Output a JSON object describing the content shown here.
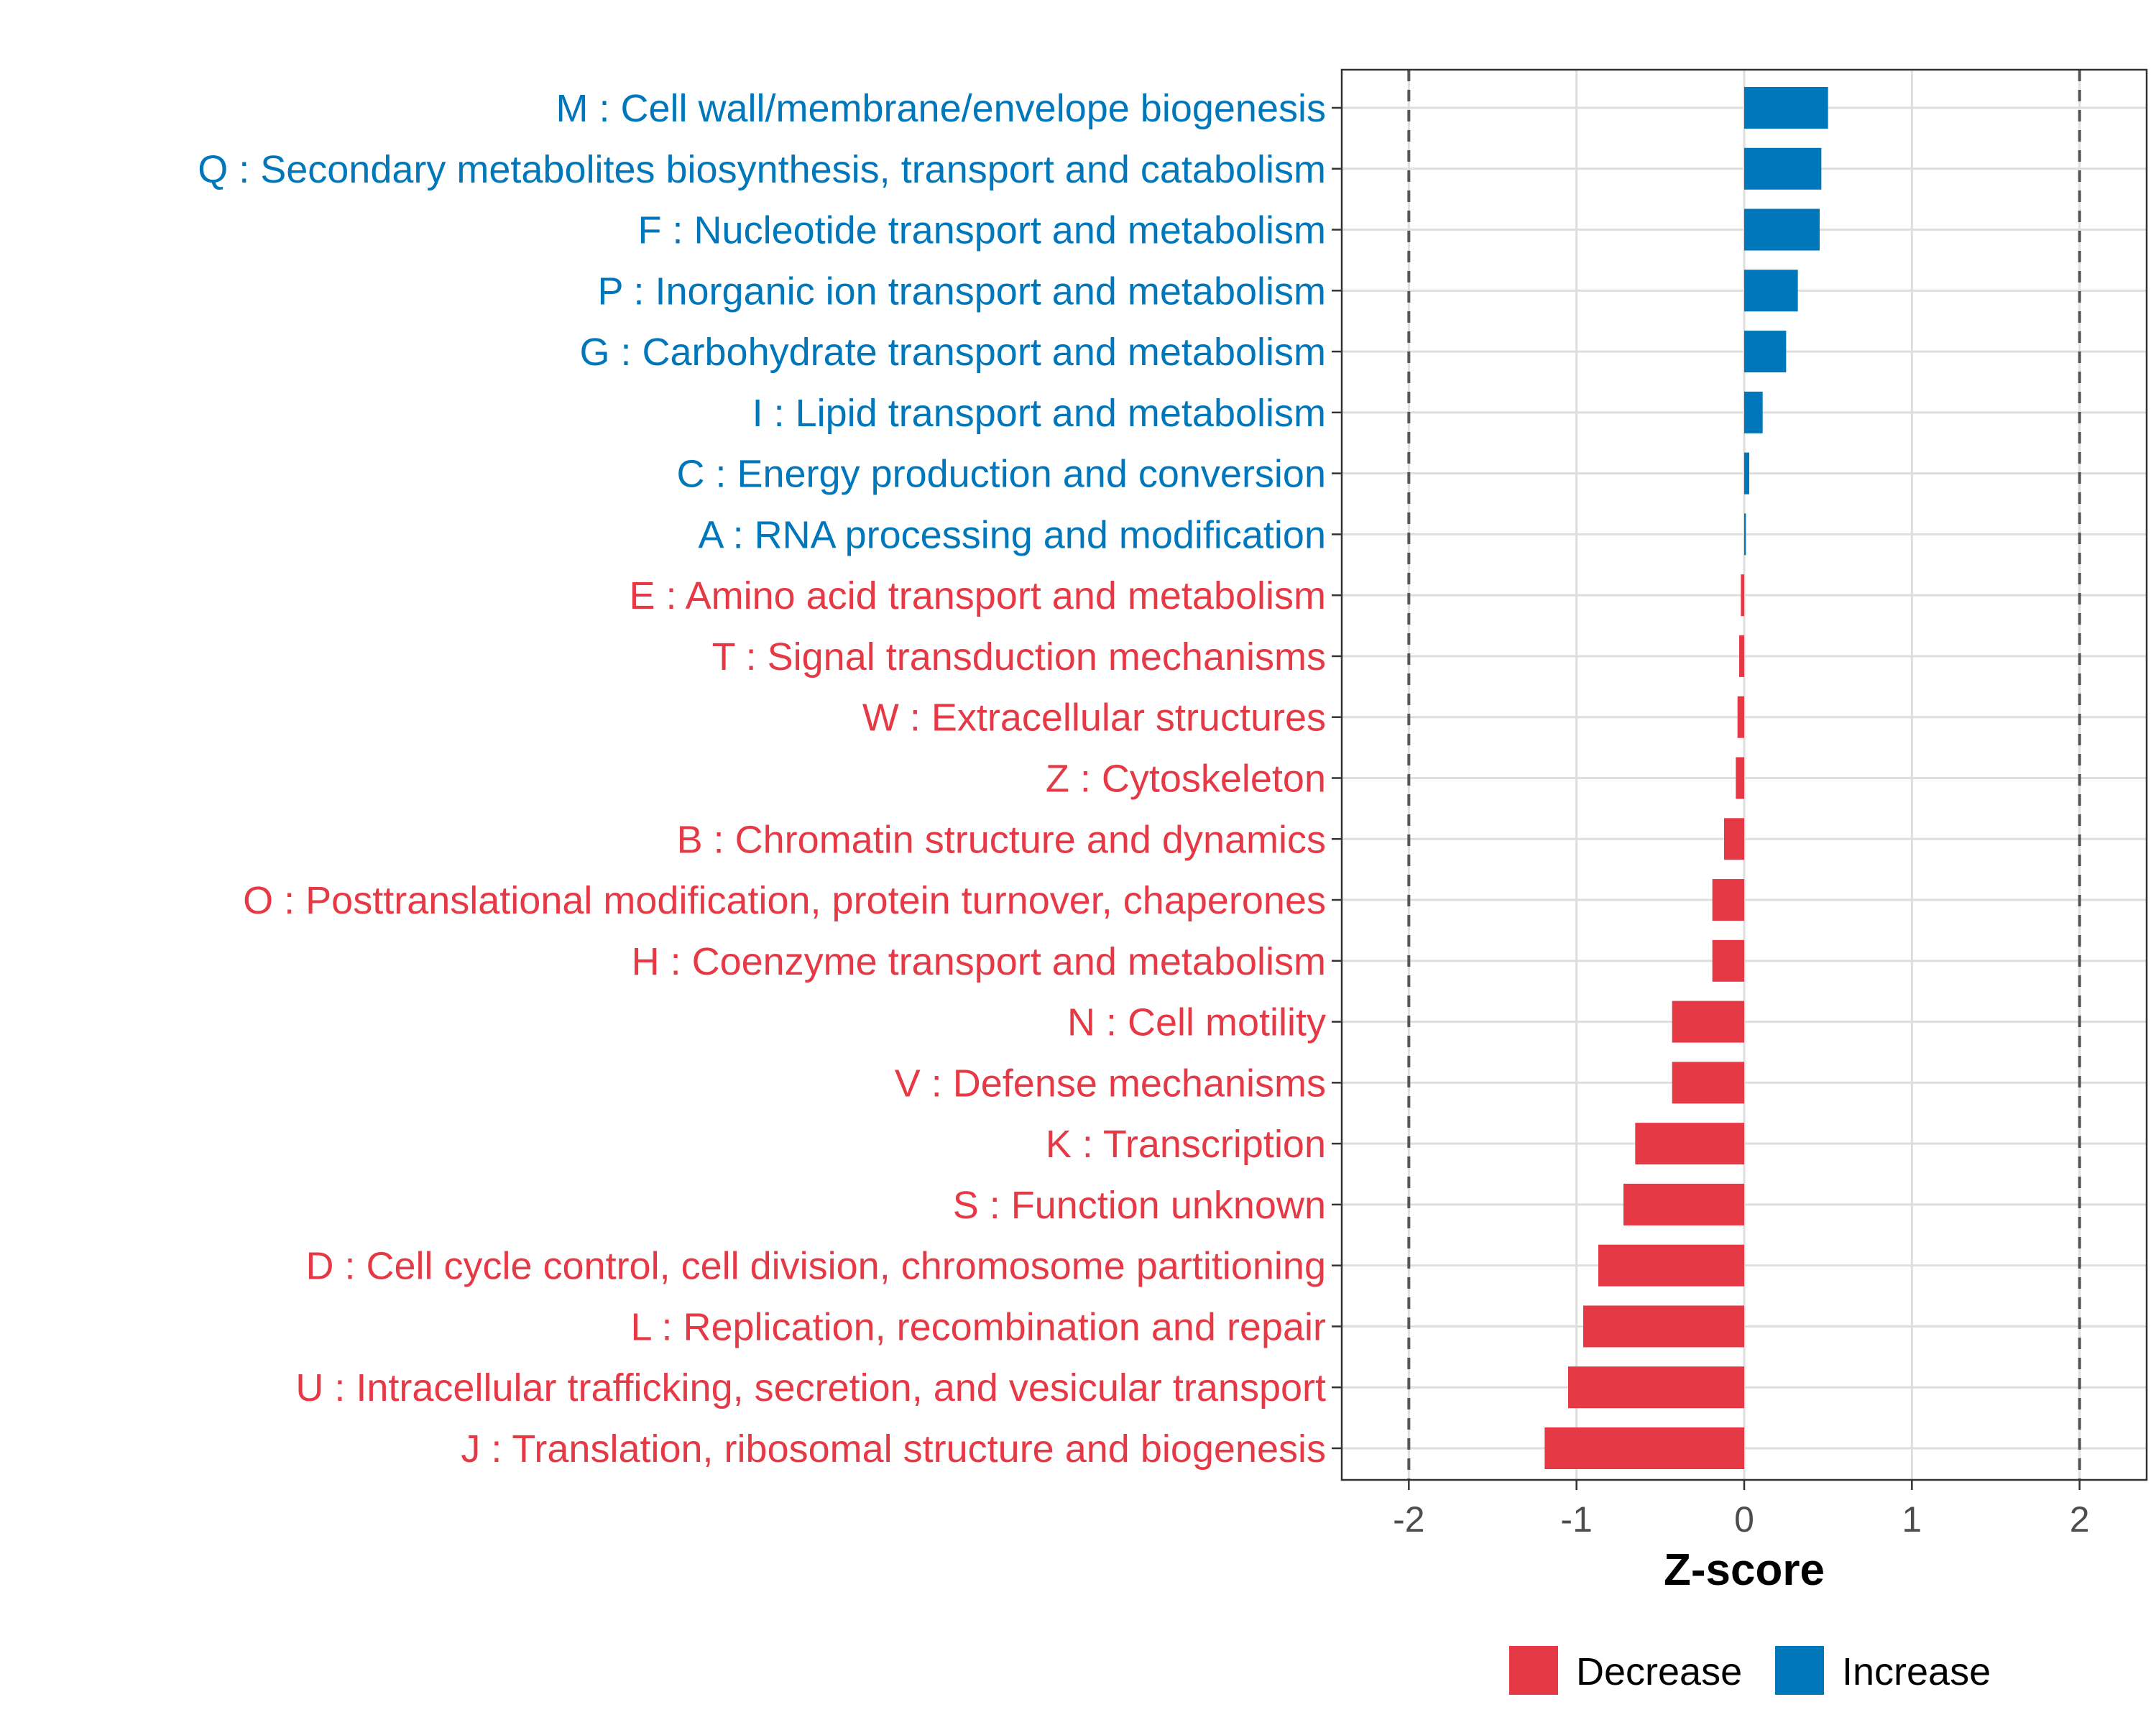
{
  "chart_data": {
    "type": "bar",
    "orientation": "horizontal",
    "xlabel": "Z-score",
    "xlim": [
      -2.4,
      2.4
    ],
    "xticks": [
      -2,
      -1,
      0,
      1,
      2
    ],
    "tick_labels": [
      "-2",
      "-1",
      "0",
      "1",
      "2"
    ],
    "reference_lines": [
      -2,
      2
    ],
    "categories": [
      "M : Cell wall/membrane/envelope biogenesis",
      "Q : Secondary metabolites biosynthesis, transport and catabolism",
      "F : Nucleotide transport and metabolism",
      "P : Inorganic ion transport and metabolism",
      "G : Carbohydrate transport and metabolism",
      "I : Lipid transport and metabolism",
      "C : Energy production and conversion",
      "A : RNA processing and modification",
      "E : Amino acid transport and metabolism",
      "T : Signal transduction mechanisms",
      "W : Extracellular structures",
      "Z : Cytoskeleton",
      "B : Chromatin structure and dynamics",
      "O : Posttranslational modification, protein turnover, chaperones",
      "H : Coenzyme transport and metabolism",
      "N : Cell motility",
      "V : Defense mechanisms",
      "K : Transcription",
      "S : Function unknown",
      "D : Cell cycle control, cell division, chromosome partitioning",
      "L : Replication, recombination and repair",
      "U : Intracellular trafficking, secretion, and vesicular transport",
      "J : Translation, ribosomal structure and biogenesis"
    ],
    "values": [
      0.5,
      0.46,
      0.45,
      0.32,
      0.25,
      0.11,
      0.03,
      0.01,
      -0.02,
      -0.03,
      -0.04,
      -0.05,
      -0.12,
      -0.19,
      -0.19,
      -0.43,
      -0.43,
      -0.65,
      -0.72,
      -0.87,
      -0.96,
      -1.05,
      -1.19
    ],
    "groups": [
      "Increase",
      "Increase",
      "Increase",
      "Increase",
      "Increase",
      "Increase",
      "Increase",
      "Increase",
      "Decrease",
      "Decrease",
      "Decrease",
      "Decrease",
      "Decrease",
      "Decrease",
      "Decrease",
      "Decrease",
      "Decrease",
      "Decrease",
      "Decrease",
      "Decrease",
      "Decrease",
      "Decrease",
      "Decrease"
    ],
    "legend": {
      "position": "bottom",
      "items": [
        {
          "label": "Decrease",
          "color": "#E63946"
        },
        {
          "label": "Increase",
          "color": "#0077BB"
        }
      ]
    },
    "colors": {
      "Decrease": "#E63946",
      "Increase": "#0077BB"
    }
  }
}
